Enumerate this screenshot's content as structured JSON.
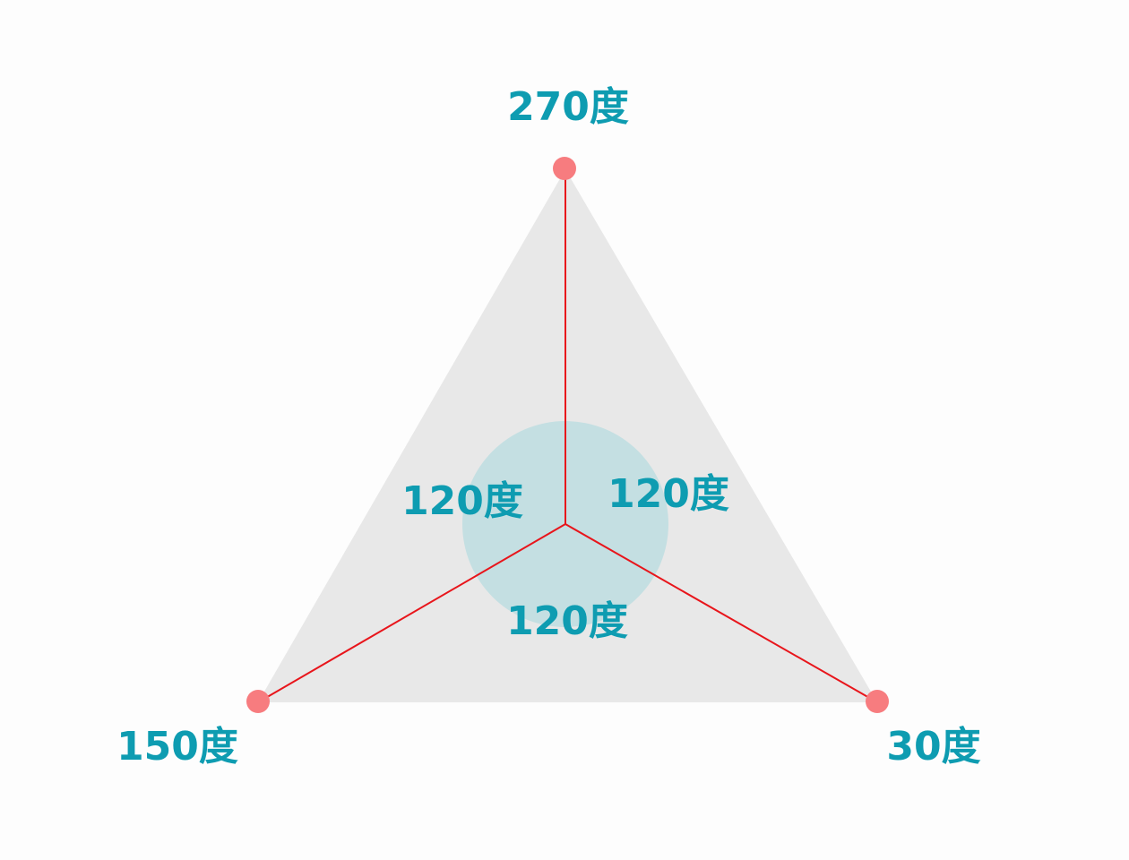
{
  "colors": {
    "background": "#fdfdfd",
    "triangle_fill": "#e8e8e8",
    "center_circle_fill": "#c4dfe2",
    "ray_stroke": "#e8151b",
    "vertex_dot_fill": "#f77c7f",
    "label_text": "#0e9cb1"
  },
  "diagram": {
    "vertices": {
      "top": {
        "label": "270度"
      },
      "bottom_left": {
        "label": "150度"
      },
      "bottom_right": {
        "label": "30度"
      }
    },
    "angles": {
      "upper_left": "120度",
      "upper_right": "120度",
      "bottom": "120度"
    }
  }
}
